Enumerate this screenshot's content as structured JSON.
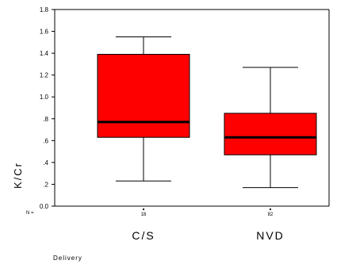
{
  "chart_data": {
    "type": "boxplot",
    "title": "",
    "xlabel": "Delivery",
    "ylabel": "K/Cr",
    "ylim": [
      0.0,
      1.8
    ],
    "yticks": [
      0.0,
      0.2,
      0.4,
      0.6,
      0.8,
      1.0,
      1.2,
      1.4,
      1.6,
      1.8
    ],
    "ytick_labels": [
      "0.0",
      ".2",
      ".4",
      ".6",
      ".8",
      "1.0",
      "1.2",
      "1.4",
      "1.6",
      "1.8"
    ],
    "n_prefix": "N =",
    "box_color": "#ff0000",
    "categories": [
      "C/S",
      "NVD"
    ],
    "n": [
      "18",
      "82"
    ],
    "boxes": [
      {
        "category": "C/S",
        "whisker_low": 0.23,
        "q1": 0.63,
        "median": 0.77,
        "q3": 1.39,
        "whisker_high": 1.55
      },
      {
        "category": "NVD",
        "whisker_low": 0.17,
        "q1": 0.47,
        "median": 0.63,
        "q3": 0.85,
        "whisker_high": 1.27
      }
    ],
    "grid": false,
    "legend": "none"
  }
}
